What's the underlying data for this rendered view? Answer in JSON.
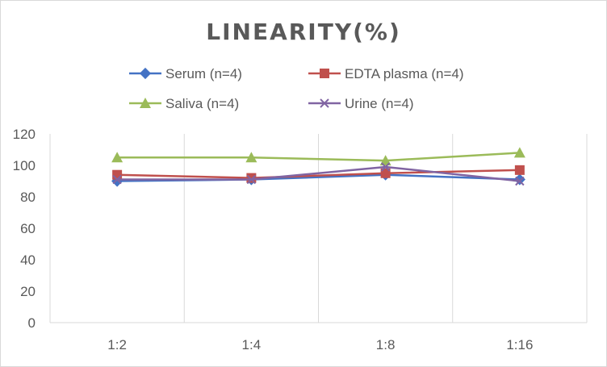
{
  "chart_data": {
    "type": "line",
    "title": "LINEARITY(%)",
    "xlabel": "",
    "ylabel": "",
    "categories": [
      "1:2",
      "1:4",
      "1:8",
      "1:16"
    ],
    "ylim": [
      0,
      120
    ],
    "yticks": [
      0,
      20,
      40,
      60,
      80,
      100,
      120
    ],
    "grid": "vertical",
    "legend_position": "top",
    "series": [
      {
        "name": "Serum (n=4)",
        "values": [
          90,
          91,
          94,
          91
        ],
        "color": "#4472c4",
        "marker": "diamond"
      },
      {
        "name": "EDTA plasma (n=4)",
        "values": [
          94,
          92,
          95,
          97
        ],
        "color": "#c0504d",
        "marker": "square"
      },
      {
        "name": "Saliva (n=4)",
        "values": [
          105,
          105,
          103,
          108
        ],
        "color": "#9bbb59",
        "marker": "triangle"
      },
      {
        "name": "Urine (n=4)",
        "values": [
          91,
          91,
          99,
          90
        ],
        "color": "#8064a2",
        "marker": "x"
      }
    ]
  }
}
